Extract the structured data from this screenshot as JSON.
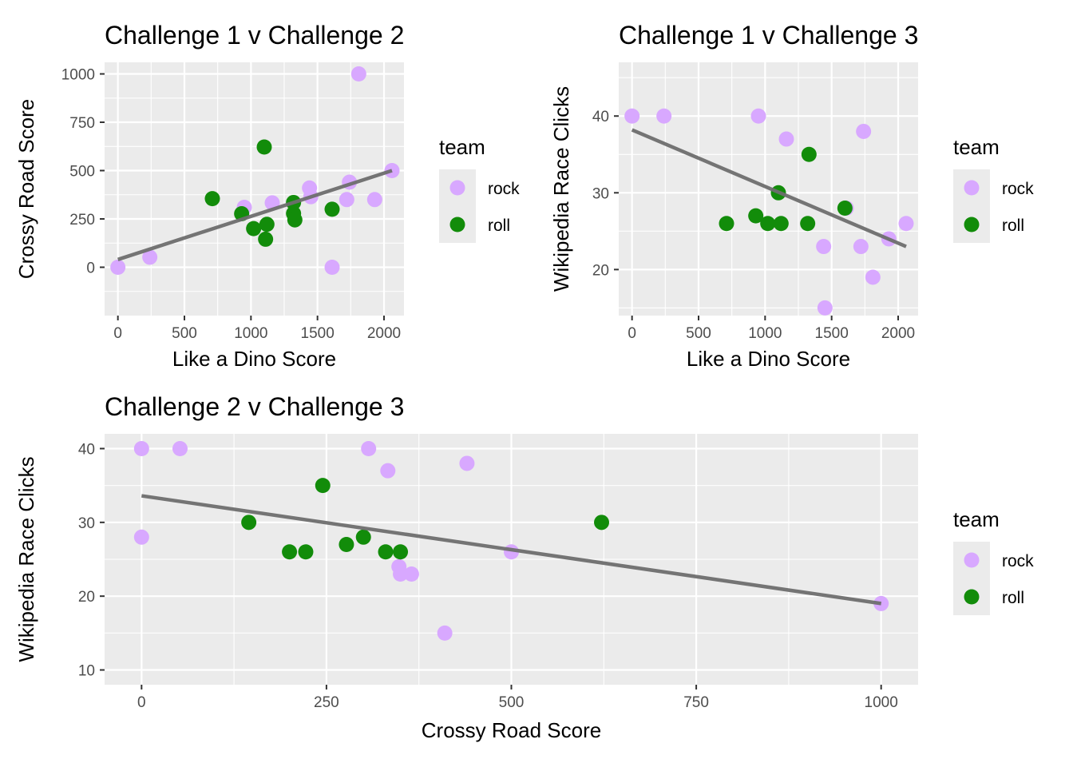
{
  "legend": {
    "title": "team",
    "entries": [
      {
        "label": "rock",
        "color": "#d8a8ff"
      },
      {
        "label": "roll",
        "color": "#128c0a"
      }
    ]
  },
  "colors": {
    "panel_bg": "#ebebeb",
    "grid_major": "#ffffff",
    "fit_line": "#6e6e6e"
  },
  "chart_data": [
    {
      "type": "scatter",
      "title": "Challenge 1 v Challenge 2",
      "xlabel": "Like a Dino Score",
      "ylabel": "Crossy Road Score",
      "xlim": [
        -100,
        2150
      ],
      "ylim": [
        -250,
        1060
      ],
      "xticks": [
        0,
        500,
        1000,
        1500,
        2000
      ],
      "yticks": [
        0,
        250,
        500,
        750,
        1000
      ],
      "grid": true,
      "legend_position": "right",
      "fit_line": {
        "x": [
          0,
          2060
        ],
        "y": [
          40,
          500
        ]
      },
      "series": [
        {
          "name": "rock",
          "points": [
            [
              0,
              0
            ],
            [
              240,
              52
            ],
            [
              950,
              310
            ],
            [
              1160,
              333
            ],
            [
              1440,
              410
            ],
            [
              1450,
              365
            ],
            [
              1610,
              0
            ],
            [
              1720,
              350
            ],
            [
              1740,
              440
            ],
            [
              1810,
              1000
            ],
            [
              1930,
              350
            ],
            [
              2060,
              500
            ]
          ]
        },
        {
          "name": "roll",
          "points": [
            [
              710,
              355
            ],
            [
              930,
              277
            ],
            [
              1020,
              200
            ],
            [
              1100,
              622
            ],
            [
              1110,
              145
            ],
            [
              1120,
              222
            ],
            [
              1320,
              335
            ],
            [
              1320,
              278
            ],
            [
              1330,
              245
            ],
            [
              1610,
              300
            ]
          ]
        }
      ]
    },
    {
      "type": "scatter",
      "title": "Challenge 1 v Challenge 3",
      "xlabel": "Like a Dino Score",
      "ylabel": "Wikipedia Race Clicks",
      "xlim": [
        -100,
        2150
      ],
      "ylim": [
        14,
        47
      ],
      "xticks": [
        0,
        500,
        1000,
        1500,
        2000
      ],
      "yticks": [
        20,
        30,
        40
      ],
      "grid": true,
      "legend_position": "right",
      "fit_line": {
        "x": [
          0,
          2060
        ],
        "y": [
          38.2,
          23
        ]
      },
      "series": [
        {
          "name": "rock",
          "points": [
            [
              0,
              40
            ],
            [
              240,
              40
            ],
            [
              950,
              40
            ],
            [
              1160,
              37
            ],
            [
              1440,
              23
            ],
            [
              1450,
              15
            ],
            [
              1610,
              28
            ],
            [
              1720,
              23
            ],
            [
              1740,
              38
            ],
            [
              1810,
              19
            ],
            [
              1930,
              24
            ],
            [
              2060,
              26
            ]
          ]
        },
        {
          "name": "roll",
          "points": [
            [
              710,
              26
            ],
            [
              930,
              27
            ],
            [
              1020,
              26
            ],
            [
              1100,
              30
            ],
            [
              1120,
              26
            ],
            [
              1320,
              26
            ],
            [
              1330,
              35
            ],
            [
              1600,
              28
            ]
          ]
        }
      ]
    },
    {
      "type": "scatter",
      "title": "Challenge 2 v Challenge 3",
      "xlabel": "Crossy Road Score",
      "ylabel": "Wikipedia Race Clicks",
      "xlim": [
        -50,
        1050
      ],
      "ylim": [
        8,
        42
      ],
      "xticks": [
        0,
        250,
        500,
        750,
        1000
      ],
      "yticks": [
        10,
        20,
        30,
        40
      ],
      "grid": true,
      "legend_position": "right",
      "fit_line": {
        "x": [
          0,
          1000
        ],
        "y": [
          33.6,
          19
        ]
      },
      "series": [
        {
          "name": "rock",
          "points": [
            [
              0,
              40
            ],
            [
              0,
              28
            ],
            [
              52,
              40
            ],
            [
              307,
              40
            ],
            [
              333,
              37
            ],
            [
              348,
              24
            ],
            [
              350,
              23
            ],
            [
              365,
              23
            ],
            [
              410,
              15
            ],
            [
              440,
              38
            ],
            [
              500,
              26
            ],
            [
              1000,
              19
            ]
          ]
        },
        {
          "name": "roll",
          "points": [
            [
              145,
              30
            ],
            [
              200,
              26
            ],
            [
              222,
              26
            ],
            [
              245,
              35
            ],
            [
              277,
              27
            ],
            [
              300,
              28
            ],
            [
              330,
              26
            ],
            [
              350,
              26
            ],
            [
              622,
              30
            ]
          ]
        }
      ]
    }
  ]
}
